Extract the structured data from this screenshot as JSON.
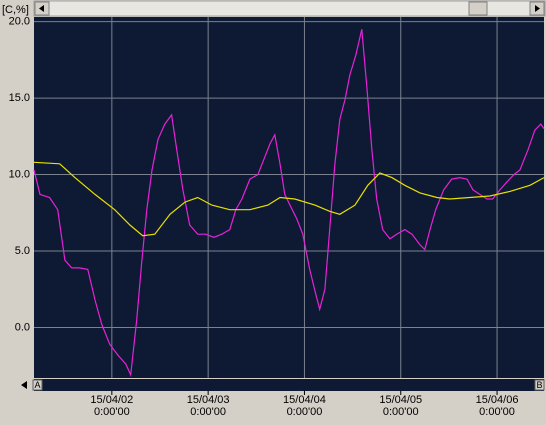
{
  "chart_data": {
    "type": "line",
    "y_unit_label": "[C,%]",
    "xlim": [
      -19.4,
      107.7
    ],
    "ylim": [
      -3.3,
      20.3
    ],
    "xticks": [
      {
        "value": 0,
        "label": "15/04/02"
      },
      {
        "value": 24,
        "label": "15/04/03"
      },
      {
        "value": 48,
        "label": "15/04/04"
      },
      {
        "value": 72,
        "label": "15/04/05"
      },
      {
        "value": 96,
        "label": "15/04/06"
      }
    ],
    "xtick_sublabels": [
      "0:00'00",
      "0:00'00",
      "0:00'00",
      "0:00'00",
      "0:00'00"
    ],
    "yticks": [
      {
        "value": 0,
        "label": "0.0"
      },
      {
        "value": 5,
        "label": "5.0"
      },
      {
        "value": 10,
        "label": "10.0"
      },
      {
        "value": 15,
        "label": "15.0"
      },
      {
        "value": 20,
        "label": "20.0"
      }
    ],
    "grid": true,
    "scroll_markers": [
      "A",
      "B"
    ],
    "series": [
      {
        "color": "#e622d8",
        "x": [
          -19.4,
          -17.9,
          -15.5,
          -13.5,
          -11.7,
          -10.0,
          -8.0,
          -6.0,
          -4.2,
          -2.5,
          -0.5,
          1.5,
          3.5,
          4.7,
          6.2,
          7.5,
          8.7,
          10.0,
          11.5,
          13.2,
          14.9,
          16.2,
          17.7,
          19.4,
          21.4,
          23.4,
          25.4,
          27.4,
          29.4,
          30.9,
          32.4,
          34.4,
          36.4,
          37.9,
          39.4,
          40.6,
          41.9,
          43.1,
          44.4,
          46.1,
          47.6,
          49.3,
          50.8,
          51.8,
          53.1,
          54.3,
          55.6,
          56.8,
          58.1,
          59.3,
          60.8,
          62.3,
          63.6,
          64.8,
          66.0,
          67.5,
          69.3,
          71.0,
          73.0,
          74.8,
          76.8,
          78.0,
          79.3,
          80.7,
          82.7,
          84.7,
          86.7,
          88.5,
          90.0,
          91.7,
          93.5,
          94.9,
          96.7,
          98.4,
          100.2,
          101.7,
          103.7,
          105.4,
          106.9,
          107.7
        ],
        "values": [
          10.3,
          8.7,
          8.5,
          7.7,
          4.4,
          3.9,
          3.9,
          3.8,
          1.8,
          0.2,
          -1.1,
          -1.8,
          -2.4,
          -3.1,
          0.5,
          4.4,
          7.7,
          10.3,
          12.3,
          13.3,
          13.9,
          11.6,
          9.0,
          6.7,
          6.1,
          6.1,
          5.9,
          6.1,
          6.4,
          7.7,
          8.4,
          9.7,
          10.0,
          11.0,
          12.0,
          12.6,
          10.7,
          8.7,
          8.0,
          7.1,
          6.1,
          3.8,
          2.2,
          1.2,
          2.5,
          6.4,
          10.7,
          13.6,
          14.9,
          16.5,
          17.8,
          19.5,
          15.6,
          11.6,
          8.4,
          6.4,
          5.8,
          6.1,
          6.4,
          6.1,
          5.4,
          5.1,
          6.4,
          7.7,
          9.0,
          9.7,
          9.8,
          9.7,
          9.0,
          8.7,
          8.4,
          8.4,
          9.0,
          9.5,
          10.0,
          10.3,
          11.6,
          12.9,
          13.3,
          13.0
        ]
      },
      {
        "color": "#e8e000",
        "x": [
          -19.4,
          -13.0,
          -9.2,
          -4.2,
          0.7,
          4.5,
          7.7,
          10.7,
          14.5,
          18.2,
          21.4,
          24.9,
          29.4,
          34.4,
          38.9,
          41.9,
          45.6,
          50.6,
          54.3,
          56.8,
          60.6,
          63.8,
          66.8,
          69.8,
          73.0,
          76.8,
          81.0,
          84.2,
          89.2,
          94.2,
          99.2,
          104.2,
          107.7
        ],
        "values": [
          10.8,
          10.7,
          9.8,
          8.7,
          7.7,
          6.7,
          6.0,
          6.1,
          7.4,
          8.2,
          8.5,
          8.0,
          7.7,
          7.7,
          8.0,
          8.5,
          8.4,
          8.0,
          7.6,
          7.4,
          8.0,
          9.3,
          10.1,
          9.8,
          9.3,
          8.8,
          8.5,
          8.4,
          8.5,
          8.6,
          8.9,
          9.3,
          9.8
        ]
      }
    ]
  }
}
